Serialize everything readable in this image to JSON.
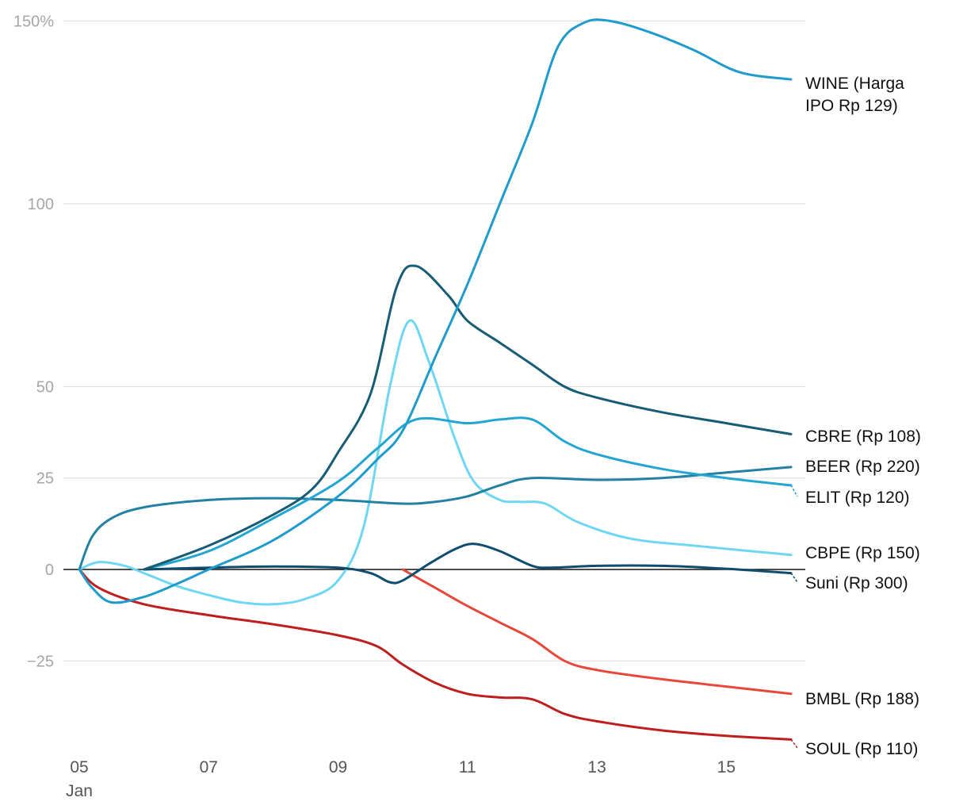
{
  "chart_data": {
    "type": "line",
    "title": "",
    "xlabel": "",
    "ylabel": "",
    "ylim": [
      -42,
      150
    ],
    "xlim": [
      5,
      16
    ],
    "y_ticks": [
      -25,
      0,
      25,
      50,
      100,
      150
    ],
    "y_tick_labels": [
      "−25",
      "0",
      "25",
      "50",
      "100",
      "150%"
    ],
    "x_ticks": [
      5,
      7,
      9,
      11,
      13,
      15
    ],
    "x_tick_labels": [
      "05",
      "07",
      "09",
      "11",
      "13",
      "15"
    ],
    "x_sublabel": "Jan",
    "series": [
      {
        "name": "WINE",
        "label_lines": [
          "WINE (Harga",
          "IPO Rp 129)"
        ],
        "color": "#1f9ccc",
        "points": [
          [
            5,
            0
          ],
          [
            5.2,
            -5
          ],
          [
            5.5,
            -9
          ],
          [
            6,
            -7.5
          ],
          [
            6.5,
            -4
          ],
          [
            7,
            0
          ],
          [
            8,
            8
          ],
          [
            9,
            20
          ],
          [
            9.6,
            30
          ],
          [
            10,
            38
          ],
          [
            10.5,
            58
          ],
          [
            11,
            78
          ],
          [
            11.5,
            100
          ],
          [
            12,
            122
          ],
          [
            12.4,
            143
          ],
          [
            12.8,
            149.5
          ],
          [
            13.2,
            150
          ],
          [
            13.8,
            147
          ],
          [
            14.5,
            142
          ],
          [
            15.2,
            136
          ],
          [
            16,
            134
          ]
        ]
      },
      {
        "name": "CBRE",
        "label_lines": [
          "CBRE (Rp 108)"
        ],
        "color": "#175c75",
        "points": [
          [
            6,
            0
          ],
          [
            7,
            6.5
          ],
          [
            8,
            15
          ],
          [
            8.6,
            22
          ],
          [
            9,
            32
          ],
          [
            9.5,
            48
          ],
          [
            9.9,
            77
          ],
          [
            10.2,
            83
          ],
          [
            10.7,
            75
          ],
          [
            11,
            68
          ],
          [
            11.5,
            62
          ],
          [
            12,
            56
          ],
          [
            12.5,
            50
          ],
          [
            13,
            47
          ],
          [
            14,
            43
          ],
          [
            15,
            40
          ],
          [
            16,
            37
          ]
        ]
      },
      {
        "name": "BEER",
        "label_lines": [
          "BEER (Rp 220)"
        ],
        "color": "#2381a3",
        "points": [
          [
            5,
            0
          ],
          [
            5.2,
            9
          ],
          [
            5.5,
            14
          ],
          [
            6,
            17
          ],
          [
            7,
            19
          ],
          [
            8,
            19.5
          ],
          [
            9,
            19
          ],
          [
            10,
            18
          ],
          [
            10.5,
            18.5
          ],
          [
            11,
            20
          ],
          [
            11.5,
            23
          ],
          [
            12,
            25
          ],
          [
            13,
            24.5
          ],
          [
            14,
            25
          ],
          [
            15,
            26.5
          ],
          [
            16,
            28
          ]
        ]
      },
      {
        "name": "ELIT",
        "label_lines": [
          "ELIT (Rp 120)"
        ],
        "color": "#23a6d1",
        "points": [
          [
            6,
            0
          ],
          [
            7,
            5
          ],
          [
            8,
            14
          ],
          [
            9,
            24
          ],
          [
            9.6,
            33
          ],
          [
            10.2,
            41
          ],
          [
            11,
            40
          ],
          [
            11.5,
            41
          ],
          [
            12,
            41
          ],
          [
            12.5,
            35
          ],
          [
            13,
            31.5
          ],
          [
            14,
            27.5
          ],
          [
            15,
            25
          ],
          [
            16,
            23
          ]
        ]
      },
      {
        "name": "CBPE",
        "label_lines": [
          "CBPE (Rp 150)"
        ],
        "color": "#6fd6f4",
        "points": [
          [
            5,
            0
          ],
          [
            5.3,
            2
          ],
          [
            5.7,
            1
          ],
          [
            6,
            -1
          ],
          [
            6.5,
            -4.5
          ],
          [
            7,
            -7
          ],
          [
            7.5,
            -9
          ],
          [
            8,
            -9.5
          ],
          [
            8.5,
            -8
          ],
          [
            9,
            -3
          ],
          [
            9.4,
            12
          ],
          [
            9.8,
            50
          ],
          [
            10.1,
            68
          ],
          [
            10.4,
            57
          ],
          [
            10.8,
            36
          ],
          [
            11.1,
            24
          ],
          [
            11.5,
            19
          ],
          [
            11.8,
            18.5
          ],
          [
            12.2,
            18
          ],
          [
            12.7,
            13
          ],
          [
            13.5,
            8.5
          ],
          [
            14.5,
            6.5
          ],
          [
            16,
            4
          ]
        ]
      },
      {
        "name": "Suni",
        "label_lines": [
          "Suni (Rp 300)"
        ],
        "color": "#0f4d70",
        "points": [
          [
            6,
            0
          ],
          [
            7,
            0.5
          ],
          [
            8,
            0.8
          ],
          [
            9,
            0.5
          ],
          [
            9.5,
            -1
          ],
          [
            9.8,
            -3.5
          ],
          [
            10,
            -3
          ],
          [
            10.4,
            1.5
          ],
          [
            10.8,
            5.5
          ],
          [
            11.1,
            7
          ],
          [
            11.5,
            5
          ],
          [
            12,
            1
          ],
          [
            12.3,
            0.5
          ],
          [
            13,
            1
          ],
          [
            14,
            1
          ],
          [
            15,
            0.2
          ],
          [
            16,
            -1
          ]
        ]
      },
      {
        "name": "BMBL",
        "label_lines": [
          "BMBL (Rp 188)"
        ],
        "color": "#e8483a",
        "points": [
          [
            10,
            0
          ],
          [
            10.5,
            -5
          ],
          [
            11,
            -10
          ],
          [
            11.5,
            -14.5
          ],
          [
            12,
            -19
          ],
          [
            12.5,
            -25
          ],
          [
            13,
            -27.5
          ],
          [
            14,
            -30
          ],
          [
            15,
            -32
          ],
          [
            16,
            -34
          ]
        ]
      },
      {
        "name": "SOUL",
        "label_lines": [
          "SOUL (Rp 110)"
        ],
        "color": "#be1e1e",
        "points": [
          [
            5,
            0
          ],
          [
            5.3,
            -5
          ],
          [
            6,
            -9.5
          ],
          [
            7,
            -12.5
          ],
          [
            8,
            -15
          ],
          [
            9,
            -18
          ],
          [
            9.6,
            -21
          ],
          [
            10,
            -26
          ],
          [
            10.5,
            -31
          ],
          [
            11,
            -34
          ],
          [
            11.5,
            -35
          ],
          [
            12,
            -35.5
          ],
          [
            12.5,
            -39.5
          ],
          [
            13,
            -41.5
          ],
          [
            14,
            -44
          ],
          [
            15,
            -45.5
          ],
          [
            16,
            -46.5
          ]
        ]
      }
    ]
  }
}
